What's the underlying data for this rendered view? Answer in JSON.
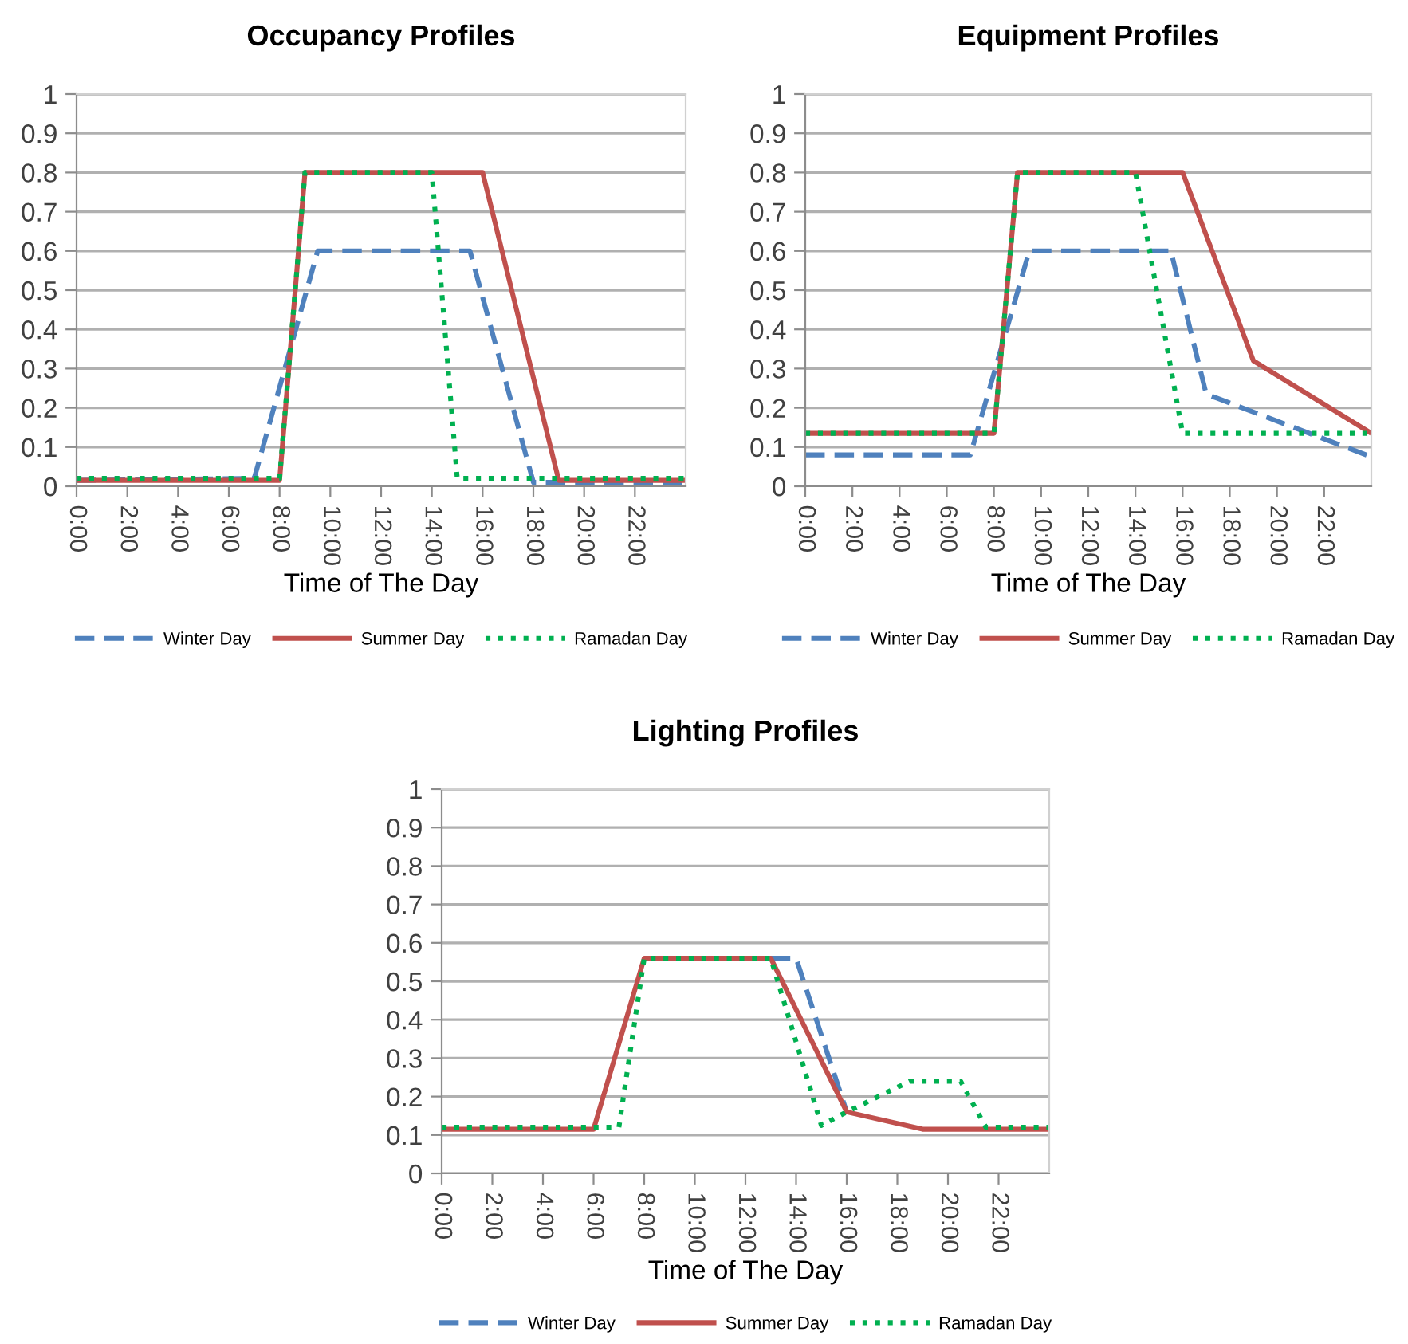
{
  "chart_data": [
    {
      "type": "line",
      "title": "Occupancy Profiles",
      "xlabel": "Time of The Day",
      "grid": "y",
      "legend": "bottom",
      "marker": "none",
      "xlim": [
        0,
        24
      ],
      "ylim": [
        0,
        1
      ],
      "xticks": [
        {
          "value": 0,
          "label": "0:00"
        },
        {
          "value": 2,
          "label": "2:00"
        },
        {
          "value": 4,
          "label": "4:00"
        },
        {
          "value": 6,
          "label": "6:00"
        },
        {
          "value": 8,
          "label": "8:00"
        },
        {
          "value": 10,
          "label": "10:00"
        },
        {
          "value": 12,
          "label": "12:00"
        },
        {
          "value": 14,
          "label": "14:00"
        },
        {
          "value": 16,
          "label": "16:00"
        },
        {
          "value": 18,
          "label": "18:00"
        },
        {
          "value": 20,
          "label": "20:00"
        },
        {
          "value": 22,
          "label": "22:00"
        }
      ],
      "yticks": [
        0,
        0.1,
        0.2,
        0.3,
        0.4,
        0.5,
        0.6,
        0.7,
        0.8,
        0.9,
        1
      ],
      "series": [
        {
          "name": "Winter Day",
          "color": "#4f81bd",
          "line_style": "dashed",
          "x": [
            0,
            7,
            9.5,
            15.5,
            18,
            24
          ],
          "values": [
            0.015,
            0.02,
            0.6,
            0.6,
            0.01,
            0.01
          ]
        },
        {
          "name": "Summer Day",
          "color": "#c0504d",
          "line_style": "solid",
          "x": [
            0,
            8,
            9,
            16,
            19,
            24
          ],
          "values": [
            0.015,
            0.015,
            0.8,
            0.8,
            0.015,
            0.015
          ]
        },
        {
          "name": "Ramadan Day",
          "color": "#00b050",
          "line_style": "dotted",
          "x": [
            0,
            8,
            9,
            14,
            15,
            24
          ],
          "values": [
            0.02,
            0.02,
            0.8,
            0.8,
            0.02,
            0.02
          ]
        }
      ]
    },
    {
      "type": "line",
      "title": "Equipment Profiles",
      "xlabel": "Time of The Day",
      "grid": "y",
      "legend": "bottom",
      "marker": "none",
      "xlim": [
        0,
        24
      ],
      "ylim": [
        0,
        1
      ],
      "xticks": [
        {
          "value": 0,
          "label": "0:00"
        },
        {
          "value": 2,
          "label": "2:00"
        },
        {
          "value": 4,
          "label": "4:00"
        },
        {
          "value": 6,
          "label": "6:00"
        },
        {
          "value": 8,
          "label": "8:00"
        },
        {
          "value": 10,
          "label": "10:00"
        },
        {
          "value": 12,
          "label": "12:00"
        },
        {
          "value": 14,
          "label": "14:00"
        },
        {
          "value": 16,
          "label": "16:00"
        },
        {
          "value": 18,
          "label": "18:00"
        },
        {
          "value": 20,
          "label": "20:00"
        },
        {
          "value": 22,
          "label": "22:00"
        }
      ],
      "yticks": [
        0,
        0.1,
        0.2,
        0.3,
        0.4,
        0.5,
        0.6,
        0.7,
        0.8,
        0.9,
        1
      ],
      "series": [
        {
          "name": "Winter Day",
          "color": "#4f81bd",
          "line_style": "dashed",
          "x": [
            0,
            7,
            9.5,
            15.5,
            17,
            24
          ],
          "values": [
            0.08,
            0.08,
            0.6,
            0.6,
            0.235,
            0.075
          ]
        },
        {
          "name": "Summer Day",
          "color": "#c0504d",
          "line_style": "solid",
          "x": [
            0,
            8,
            9,
            16,
            19,
            24
          ],
          "values": [
            0.135,
            0.135,
            0.8,
            0.8,
            0.32,
            0.135
          ]
        },
        {
          "name": "Ramadan Day",
          "color": "#00b050",
          "line_style": "dotted",
          "x": [
            0,
            8,
            9,
            14,
            16,
            24
          ],
          "values": [
            0.135,
            0.135,
            0.8,
            0.8,
            0.135,
            0.135
          ]
        }
      ]
    },
    {
      "type": "line",
      "title": "Lighting Profiles",
      "xlabel": "Time of The Day",
      "grid": "y",
      "legend": "bottom",
      "marker": "none",
      "xlim": [
        0,
        24
      ],
      "ylim": [
        0,
        1
      ],
      "xticks": [
        {
          "value": 0,
          "label": "0:00"
        },
        {
          "value": 2,
          "label": "2:00"
        },
        {
          "value": 4,
          "label": "4:00"
        },
        {
          "value": 6,
          "label": "6:00"
        },
        {
          "value": 8,
          "label": "8:00"
        },
        {
          "value": 10,
          "label": "10:00"
        },
        {
          "value": 12,
          "label": "12:00"
        },
        {
          "value": 14,
          "label": "14:00"
        },
        {
          "value": 16,
          "label": "16:00"
        },
        {
          "value": 18,
          "label": "18:00"
        },
        {
          "value": 20,
          "label": "20:00"
        },
        {
          "value": 22,
          "label": "22:00"
        }
      ],
      "yticks": [
        0,
        0.1,
        0.2,
        0.3,
        0.4,
        0.5,
        0.6,
        0.7,
        0.8,
        0.9,
        1
      ],
      "series": [
        {
          "name": "Winter Day",
          "color": "#4f81bd",
          "line_style": "dashed",
          "x": [
            13,
            14,
            16
          ],
          "values": [
            0.56,
            0.56,
            0.16
          ]
        },
        {
          "name": "Summer Day",
          "color": "#c0504d",
          "line_style": "solid",
          "x": [
            0,
            6,
            8,
            13,
            16,
            19,
            24
          ],
          "values": [
            0.115,
            0.115,
            0.56,
            0.56,
            0.16,
            0.115,
            0.115
          ]
        },
        {
          "name": "Ramadan Day",
          "color": "#00b050",
          "line_style": "dotted",
          "x": [
            0,
            7,
            8,
            13,
            15,
            16,
            18.5,
            20.5,
            21.5,
            24
          ],
          "values": [
            0.12,
            0.12,
            0.56,
            0.56,
            0.125,
            0.16,
            0.24,
            0.24,
            0.12,
            0.12
          ]
        }
      ]
    }
  ]
}
